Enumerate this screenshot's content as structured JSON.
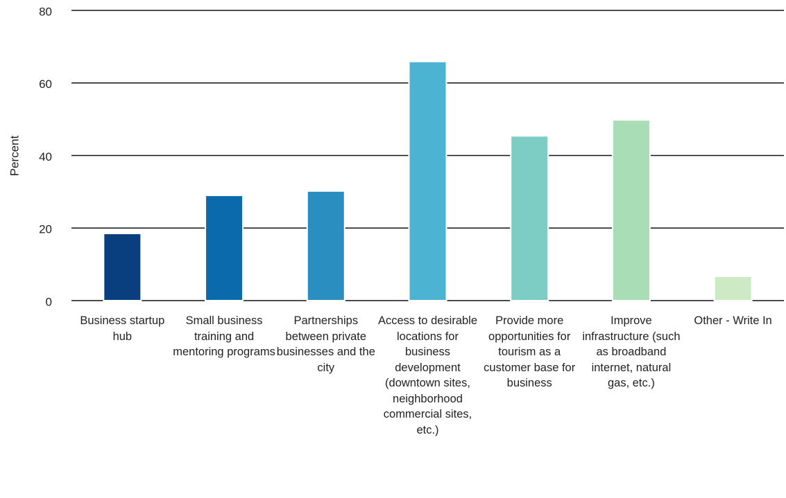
{
  "chart_data": {
    "type": "bar",
    "y_label": "Percent",
    "categories": [
      "Business startup hub",
      "Small business training and mentoring programs",
      "Partnerships between private businesses and the city",
      "Access to desirable locations for business development (downtown sites, neighborhood commercial sites, etc.)",
      "Provide more opportunities for tourism as a customer base for business",
      "Improve infrastructure (such as broadband internet, natural gas, etc.)",
      "Other - Write In"
    ],
    "values": [
      18.5,
      29.0,
      30.2,
      65.9,
      45.4,
      49.8,
      6.7
    ],
    "colors": [
      "#0a3f7f",
      "#0a6aab",
      "#2a8fc0",
      "#4db3d3",
      "#7dcdc4",
      "#a8ddb5",
      "#ccebc5"
    ],
    "ylim": [
      0,
      80
    ],
    "yticks": [
      0,
      20,
      40,
      60,
      80
    ],
    "grid": true
  }
}
